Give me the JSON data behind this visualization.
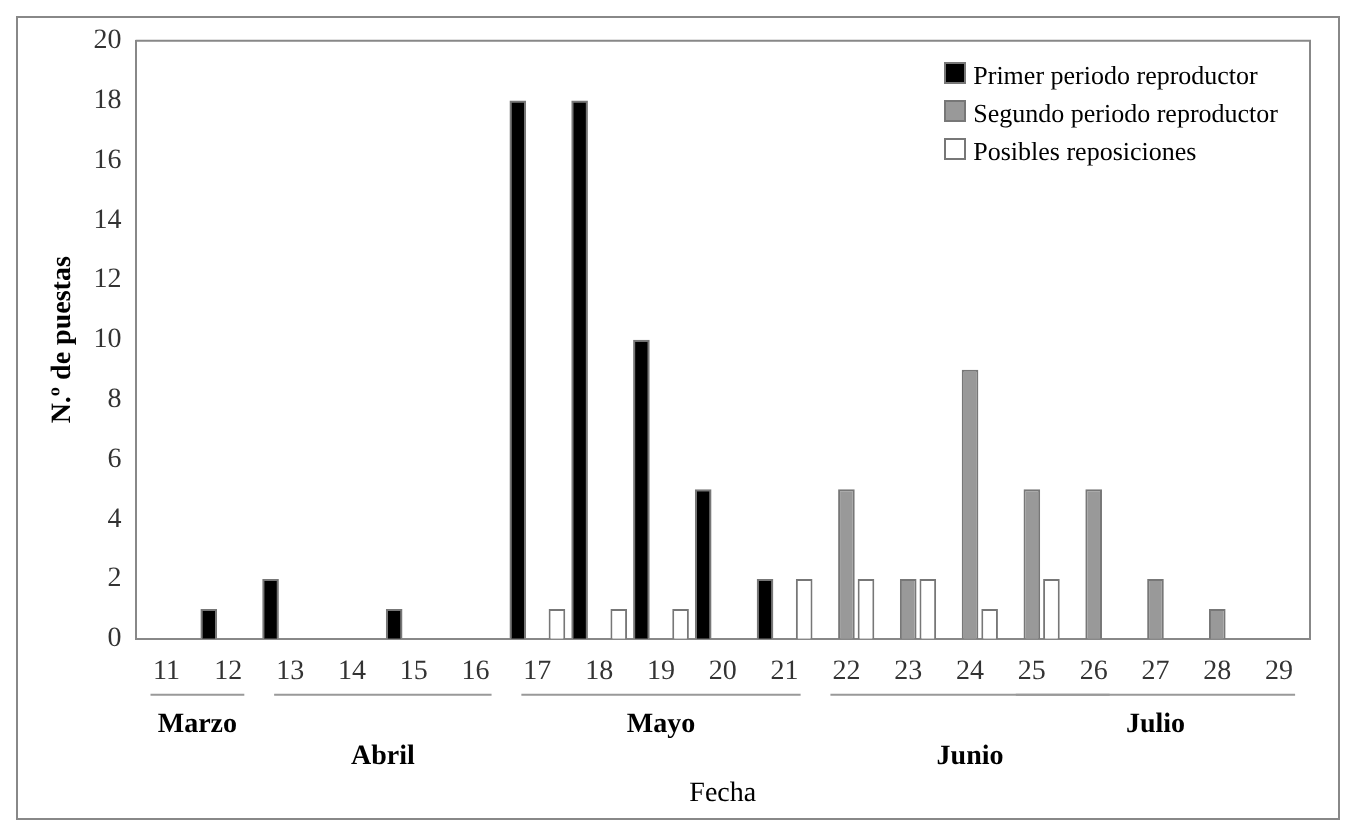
{
  "chart_data": {
    "type": "bar",
    "xlabel": "Fecha",
    "ylabel": "N.º de puestas",
    "categories": [
      "11",
      "12",
      "13",
      "14",
      "15",
      "16",
      "17",
      "18",
      "19",
      "20",
      "21",
      "22",
      "23",
      "24",
      "25",
      "26",
      "27",
      "28",
      "29"
    ],
    "series": [
      {
        "name": "Primer periodo reproductor",
        "color": "#000000",
        "values": [
          null,
          1,
          2,
          null,
          1,
          null,
          18,
          18,
          10,
          5,
          2,
          null,
          null,
          null,
          null,
          null,
          null,
          null,
          null
        ]
      },
      {
        "name": "Segundo periodo reproductor",
        "color": "#999999",
        "values": [
          null,
          null,
          null,
          null,
          null,
          null,
          null,
          null,
          null,
          null,
          null,
          5,
          2,
          9,
          5,
          5,
          2,
          1,
          null
        ]
      },
      {
        "name": "Posibles reposiciones",
        "color": "#ffffff",
        "values": [
          null,
          null,
          null,
          null,
          null,
          null,
          1,
          1,
          1,
          null,
          2,
          2,
          2,
          1,
          2,
          null,
          null,
          null,
          null
        ]
      }
    ],
    "ylim": [
      0,
      20
    ],
    "yticks": [
      0,
      2,
      4,
      6,
      8,
      10,
      12,
      14,
      16,
      18,
      20
    ],
    "grid": false,
    "legend": "top right",
    "annotations": [
      "Marzo",
      "Abril",
      "Mayo",
      "Junio",
      "Julio"
    ]
  }
}
